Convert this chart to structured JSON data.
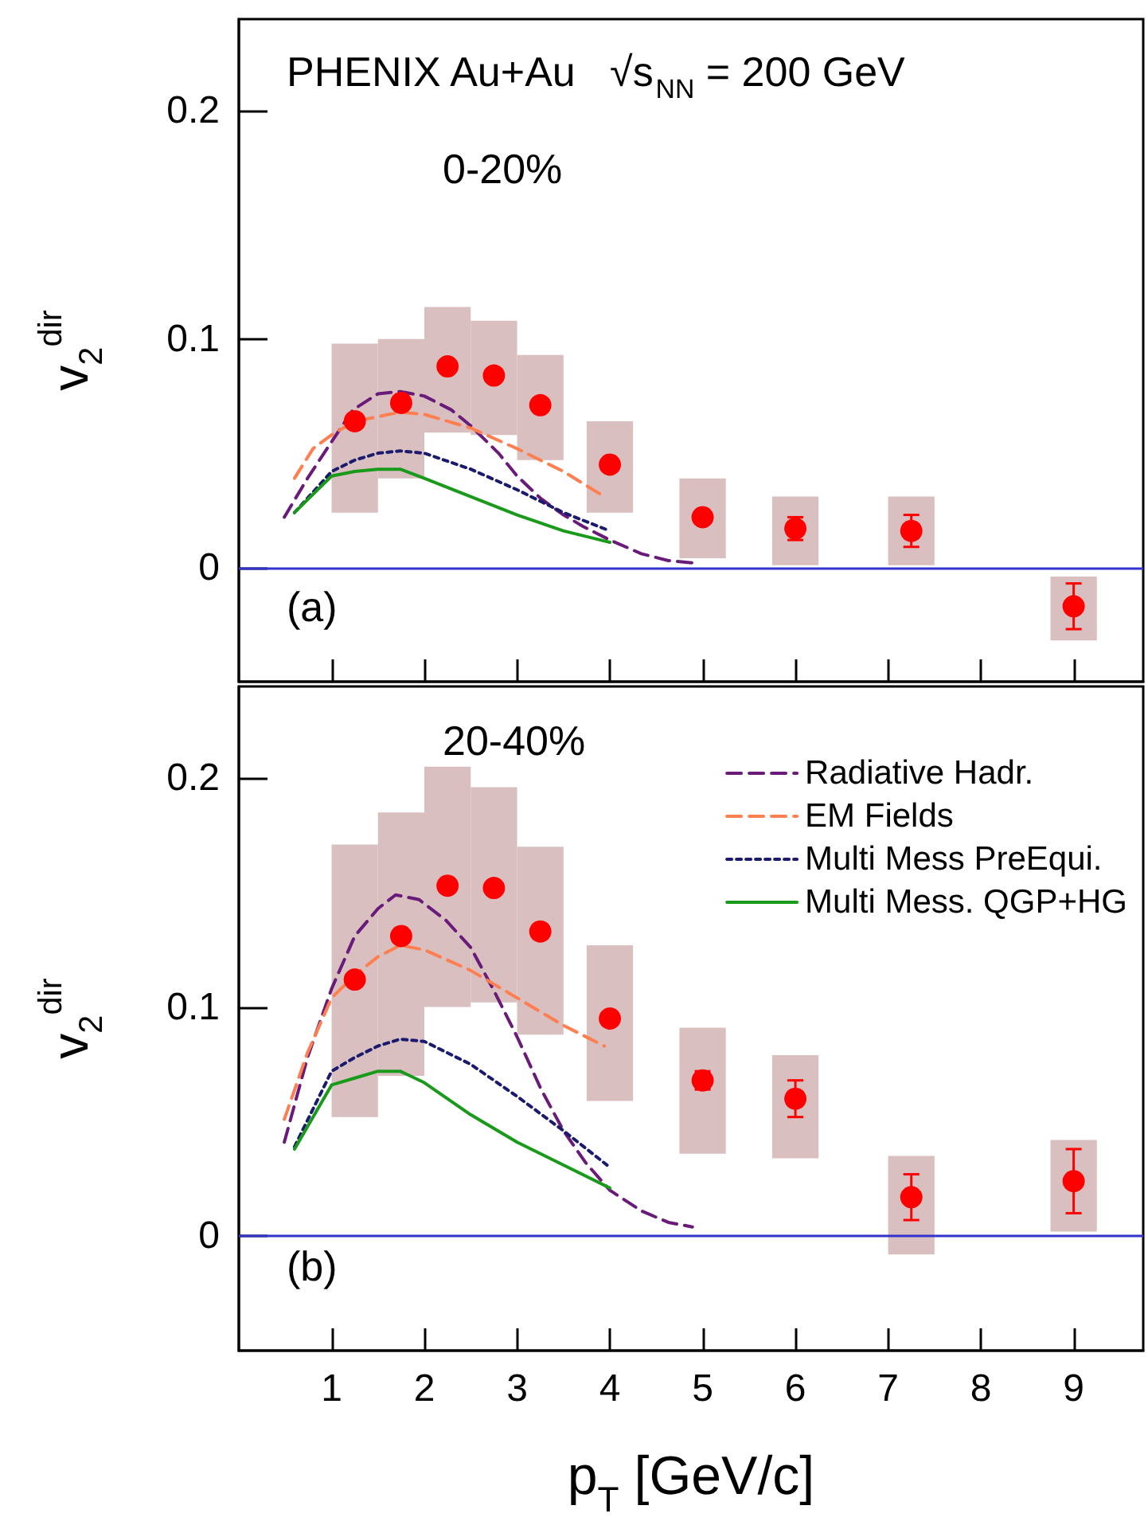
{
  "chart_data": [
    {
      "type": "scatter",
      "ylabel": "v$_{2}$$^{dir}$",
      "xlim": [
        0,
        9.75
      ],
      "xticks": [
        1,
        2,
        3,
        4,
        5,
        6,
        7,
        8,
        9
      ],
      "ylim": [
        -0.05,
        0.24
      ],
      "yticks": [
        0,
        0.1,
        0.2
      ],
      "tick_labels": "y",
      "grid": false,
      "legend": false,
      "annotations": [
        "PHENIX Au+Au   √s$_{NN}$ = 200 GeV",
        "0-20%",
        "(a)"
      ],
      "ref_lines": [
        {
          "axis": "y",
          "value": 0,
          "color": "#3333cc"
        }
      ],
      "series": [
        {
          "type": "bar",
          "color": "#d9bfbf",
          "x": [
            1.25,
            1.75,
            2.25,
            2.75,
            3.25,
            4,
            5,
            6,
            7.25,
            9
          ],
          "base": [
            0.024,
            0.039,
            0.059,
            0.058,
            0.047,
            0.024,
            0.004,
            0.001,
            0.001,
            -0.032
          ],
          "values": [
            0.074,
            0.061,
            0.055,
            0.05,
            0.046,
            0.04,
            0.035,
            0.03,
            0.03,
            0.028
          ]
        },
        {
          "type": "line",
          "color": "#6a1b7a",
          "line_style": "dashed",
          "marker": "none",
          "x": [
            0.49,
            0.74,
            1.0,
            1.23,
            1.5,
            1.74,
            2.0,
            2.29,
            2.5,
            2.8,
            3.0,
            3.26,
            3.5,
            3.71,
            4.0,
            4.34,
            4.63,
            4.89
          ],
          "values": [
            0.022,
            0.039,
            0.055,
            0.069,
            0.076,
            0.077,
            0.075,
            0.069,
            0.062,
            0.05,
            0.04,
            0.03,
            0.023,
            0.018,
            0.012,
            0.006,
            0.003,
            0.002
          ]
        },
        {
          "type": "line",
          "color": "#ff7f50",
          "line_style": "dashed",
          "marker": "none",
          "x": [
            0.6,
            0.8,
            1.0,
            1.25,
            1.5,
            1.74,
            2.0,
            2.5,
            3.0,
            3.5,
            3.94
          ],
          "values": [
            0.039,
            0.052,
            0.058,
            0.064,
            0.066,
            0.068,
            0.067,
            0.061,
            0.052,
            0.042,
            0.031
          ]
        },
        {
          "type": "line",
          "color": "#1a1a6e",
          "line_style": "dotted",
          "marker": "none",
          "x": [
            0.6,
            1.0,
            1.25,
            1.5,
            1.74,
            2.0,
            2.5,
            3.0,
            3.5,
            4.0
          ],
          "values": [
            0.024,
            0.042,
            0.047,
            0.05,
            0.051,
            0.05,
            0.043,
            0.034,
            0.024,
            0.016
          ]
        },
        {
          "type": "line",
          "color": "#1a9a1a",
          "line_style": "solid",
          "marker": "none",
          "x": [
            0.6,
            1.0,
            1.25,
            1.5,
            1.74,
            2.0,
            2.5,
            3.0,
            3.5,
            4.0
          ],
          "values": [
            0.024,
            0.04,
            0.042,
            0.043,
            0.043,
            0.039,
            0.031,
            0.023,
            0.016,
            0.011
          ]
        },
        {
          "color": "#ff0000",
          "marker": "circle",
          "x": [
            1.25,
            1.75,
            2.25,
            2.75,
            3.25,
            4,
            5,
            6,
            7.25,
            9
          ],
          "values": [
            0.064,
            0.072,
            0.088,
            0.084,
            0.071,
            0.045,
            0.022,
            0.017,
            0.016,
            -0.017
          ],
          "errors": [
            null,
            null,
            null,
            null,
            null,
            null,
            null,
            0.005,
            0.007,
            0.01
          ]
        }
      ]
    },
    {
      "type": "scatter",
      "xlabel": "p$_{T}$ [GeV/c]",
      "ylabel": "v$_{2}$$^{dir}$",
      "xlim": [
        0,
        9.75
      ],
      "xticks": [
        1,
        2,
        3,
        4,
        5,
        6,
        7,
        8,
        9
      ],
      "ylim": [
        -0.05,
        0.24
      ],
      "yticks": [
        0,
        0.1,
        0.2
      ],
      "grid": false,
      "legend": "top right",
      "annotations": [
        "20-40%",
        "(b)"
      ],
      "ref_lines": [
        {
          "axis": "y",
          "value": 0,
          "color": "#3333cc"
        }
      ],
      "series": [
        {
          "type": "bar",
          "color": "#d9bfbf",
          "x": [
            1.25,
            1.75,
            2.25,
            2.75,
            3.25,
            4,
            5,
            6,
            7.25,
            9
          ],
          "base": [
            0.052,
            0.07,
            0.1,
            0.102,
            0.088,
            0.059,
            0.036,
            0.034,
            -0.008,
            0.002
          ],
          "values": [
            0.119,
            0.115,
            0.105,
            0.094,
            0.082,
            0.068,
            0.055,
            0.045,
            0.043,
            0.04
          ]
        },
        {
          "type": "line",
          "name": "Radiative Hadr.",
          "color": "#6a1b7a",
          "line_style": "dashed",
          "marker": "none",
          "x": [
            0.49,
            0.74,
            1.0,
            1.25,
            1.5,
            1.69,
            1.94,
            2.23,
            2.5,
            2.74,
            3.0,
            3.26,
            3.5,
            3.74,
            4.0,
            4.34,
            4.63,
            4.89
          ],
          "values": [
            0.041,
            0.078,
            0.108,
            0.131,
            0.143,
            0.149,
            0.147,
            0.138,
            0.126,
            0.108,
            0.087,
            0.064,
            0.046,
            0.032,
            0.02,
            0.011,
            0.006,
            0.004
          ]
        },
        {
          "type": "line",
          "name": "EM Fields",
          "color": "#ff7f50",
          "line_style": "dashed",
          "marker": "none",
          "x": [
            0.49,
            0.74,
            1.0,
            1.25,
            1.5,
            1.74,
            2.0,
            2.5,
            3.0,
            3.5,
            3.94
          ],
          "values": [
            0.051,
            0.08,
            0.104,
            0.114,
            0.122,
            0.127,
            0.125,
            0.116,
            0.104,
            0.092,
            0.083
          ]
        },
        {
          "type": "line",
          "name": "Multi Mess PreEqui.",
          "color": "#1a1a6e",
          "line_style": "dotted",
          "marker": "none",
          "x": [
            0.6,
            1.0,
            1.25,
            1.5,
            1.74,
            2.0,
            2.5,
            3.0,
            3.5,
            3.97
          ],
          "values": [
            0.039,
            0.072,
            0.078,
            0.083,
            0.086,
            0.085,
            0.075,
            0.061,
            0.046,
            0.031
          ]
        },
        {
          "type": "line",
          "name": "Multi Mess. QGP+HG",
          "color": "#1a9a1a",
          "line_style": "solid",
          "marker": "none",
          "x": [
            0.6,
            1.0,
            1.25,
            1.5,
            1.74,
            2.0,
            2.5,
            3.0,
            3.5,
            4.0
          ],
          "values": [
            0.038,
            0.066,
            0.069,
            0.072,
            0.072,
            0.067,
            0.053,
            0.041,
            0.031,
            0.021
          ]
        },
        {
          "color": "#ff0000",
          "marker": "circle",
          "x": [
            1.25,
            1.75,
            2.25,
            2.75,
            3.25,
            4,
            5,
            6,
            7.25,
            9
          ],
          "values": [
            0.112,
            0.131,
            0.153,
            0.152,
            0.133,
            0.095,
            0.068,
            0.06,
            0.017,
            0.024
          ],
          "errors": [
            null,
            null,
            null,
            null,
            null,
            null,
            0.004,
            0.008,
            0.01,
            0.014
          ]
        }
      ]
    }
  ]
}
